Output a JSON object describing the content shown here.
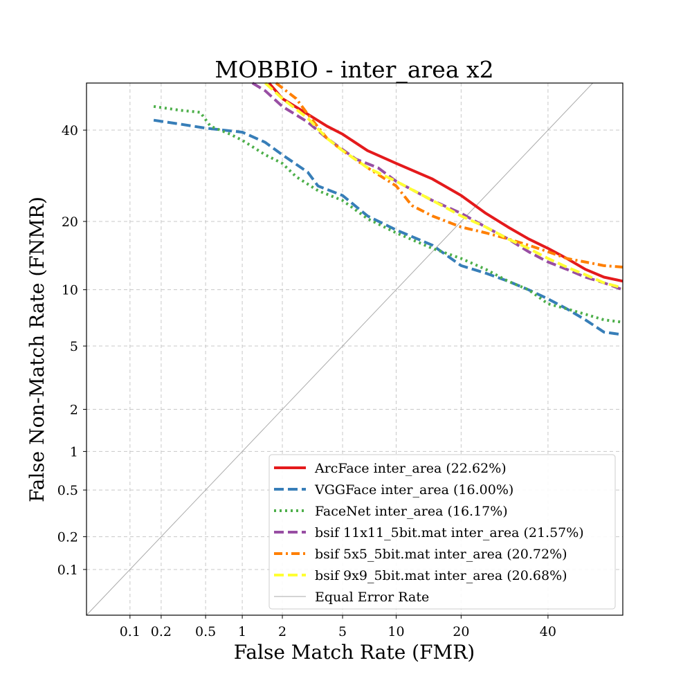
{
  "chart_data": {
    "type": "line",
    "title": "MOBBIO - inter_area x2",
    "xlabel": "False Match Rate (FMR)",
    "ylabel": "False Non-Match Rate (FNMR)",
    "scale": "normal-deviate (probit) on both axes, values in percent",
    "xlim": [
      0.0355,
      60
    ],
    "ylim": [
      0.0355,
      52
    ],
    "xticks": [
      {
        "value": 0.1,
        "label": "0.1"
      },
      {
        "value": 0.2,
        "label": "0.2"
      },
      {
        "value": 0.5,
        "label": "0.5"
      },
      {
        "value": 1,
        "label": "1"
      },
      {
        "value": 2,
        "label": "2"
      },
      {
        "value": 5,
        "label": "5"
      },
      {
        "value": 10,
        "label": "10"
      },
      {
        "value": 20,
        "label": "20"
      },
      {
        "value": 40,
        "label": "40"
      }
    ],
    "yticks": [
      {
        "value": 0.1,
        "label": "0.1"
      },
      {
        "value": 0.2,
        "label": "0.2"
      },
      {
        "value": 0.5,
        "label": "0.5"
      },
      {
        "value": 1,
        "label": "1"
      },
      {
        "value": 2,
        "label": "2"
      },
      {
        "value": 5,
        "label": "5"
      },
      {
        "value": 10,
        "label": "10"
      },
      {
        "value": 20,
        "label": "20"
      },
      {
        "value": 40,
        "label": "40"
      }
    ],
    "grid": true,
    "legend_position": "lower-right",
    "series": [
      {
        "name": "ArcFace inter_area (22.62%)",
        "color": "#e41a1c",
        "style": "solid",
        "points": [
          [
            1.6,
            52
          ],
          [
            2,
            48
          ],
          [
            3,
            44
          ],
          [
            4,
            41
          ],
          [
            5,
            39
          ],
          [
            7,
            35
          ],
          [
            10,
            32
          ],
          [
            15,
            28.5
          ],
          [
            20,
            25
          ],
          [
            25,
            21.5
          ],
          [
            30,
            19
          ],
          [
            35,
            17
          ],
          [
            40,
            15.5
          ],
          [
            45,
            14
          ],
          [
            50,
            12.5
          ],
          [
            55,
            11.5
          ],
          [
            60,
            11
          ]
        ]
      },
      {
        "name": "VGGFace inter_area (16.00%)",
        "color": "#377eb8",
        "style": "dashed",
        "points": [
          [
            0.17,
            42.5
          ],
          [
            0.3,
            41.5
          ],
          [
            0.5,
            40.5
          ],
          [
            1,
            39.5
          ],
          [
            1.5,
            37
          ],
          [
            2,
            34
          ],
          [
            3,
            30
          ],
          [
            3.5,
            27
          ],
          [
            5,
            25
          ],
          [
            7,
            21
          ],
          [
            10,
            18.5
          ],
          [
            15,
            16
          ],
          [
            20,
            13
          ],
          [
            25,
            12
          ],
          [
            30,
            11
          ],
          [
            35,
            10
          ],
          [
            40,
            9
          ],
          [
            45,
            8
          ],
          [
            50,
            7
          ],
          [
            55,
            6
          ],
          [
            60,
            5.8
          ]
        ]
      },
      {
        "name": "FaceNet inter_area (16.17%)",
        "color": "#4daf4a",
        "style": "dotted",
        "points": [
          [
            0.17,
            46
          ],
          [
            0.3,
            45
          ],
          [
            0.45,
            44.5
          ],
          [
            0.55,
            41
          ],
          [
            0.8,
            39
          ],
          [
            1,
            37.5
          ],
          [
            1.5,
            34
          ],
          [
            2,
            32
          ],
          [
            2.5,
            29
          ],
          [
            3.5,
            26
          ],
          [
            5,
            24
          ],
          [
            7,
            20.5
          ],
          [
            10,
            18
          ],
          [
            15,
            15.5
          ],
          [
            20,
            14
          ],
          [
            25,
            12.5
          ],
          [
            30,
            11
          ],
          [
            35,
            10
          ],
          [
            40,
            8.5
          ],
          [
            45,
            8
          ],
          [
            50,
            7.5
          ],
          [
            55,
            7
          ],
          [
            60,
            6.8
          ]
        ]
      },
      {
        "name": "bsif 11x11_5bit.mat inter_area (21.57%)",
        "color": "#984ea3",
        "style": "dashed",
        "points": [
          [
            1.2,
            52
          ],
          [
            1.5,
            50
          ],
          [
            2,
            46
          ],
          [
            3,
            42
          ],
          [
            4,
            38
          ],
          [
            6,
            33
          ],
          [
            8,
            31
          ],
          [
            10,
            28
          ],
          [
            15,
            24
          ],
          [
            20,
            21.5
          ],
          [
            25,
            19
          ],
          [
            30,
            17
          ],
          [
            35,
            15
          ],
          [
            40,
            13.5
          ],
          [
            45,
            12.5
          ],
          [
            50,
            11.5
          ],
          [
            55,
            10.8
          ],
          [
            60,
            10
          ]
        ]
      },
      {
        "name": "bsif 5x5_5bit.mat inter_area (20.72%)",
        "color": "#ff7f00",
        "style": "dashdot",
        "points": [
          [
            1.8,
            52
          ],
          [
            2.5,
            48
          ],
          [
            3,
            44
          ],
          [
            4,
            38
          ],
          [
            5,
            35
          ],
          [
            7,
            31
          ],
          [
            10,
            27
          ],
          [
            12,
            23
          ],
          [
            15,
            21
          ],
          [
            20,
            19
          ],
          [
            25,
            18
          ],
          [
            30,
            17
          ],
          [
            35,
            16
          ],
          [
            40,
            15
          ],
          [
            45,
            14
          ],
          [
            50,
            13.5
          ],
          [
            55,
            13
          ],
          [
            60,
            12.8
          ]
        ]
      },
      {
        "name": "bsif 9x9_5bit.mat inter_area (20.68%)",
        "color": "#ffff33",
        "style": "dashed",
        "points": [
          [
            1.5,
            52
          ],
          [
            2,
            48
          ],
          [
            3,
            43
          ],
          [
            4,
            38
          ],
          [
            5,
            35
          ],
          [
            7,
            31
          ],
          [
            10,
            28
          ],
          [
            15,
            24
          ],
          [
            20,
            21
          ],
          [
            25,
            19
          ],
          [
            30,
            17
          ],
          [
            35,
            15.5
          ],
          [
            40,
            14
          ],
          [
            45,
            12.8
          ],
          [
            50,
            11.8
          ],
          [
            55,
            10.8
          ],
          [
            60,
            10.2
          ]
        ]
      }
    ],
    "reference_line": {
      "name": "Equal Error Rate",
      "color": "#aaaaaa",
      "style": "solid"
    }
  }
}
